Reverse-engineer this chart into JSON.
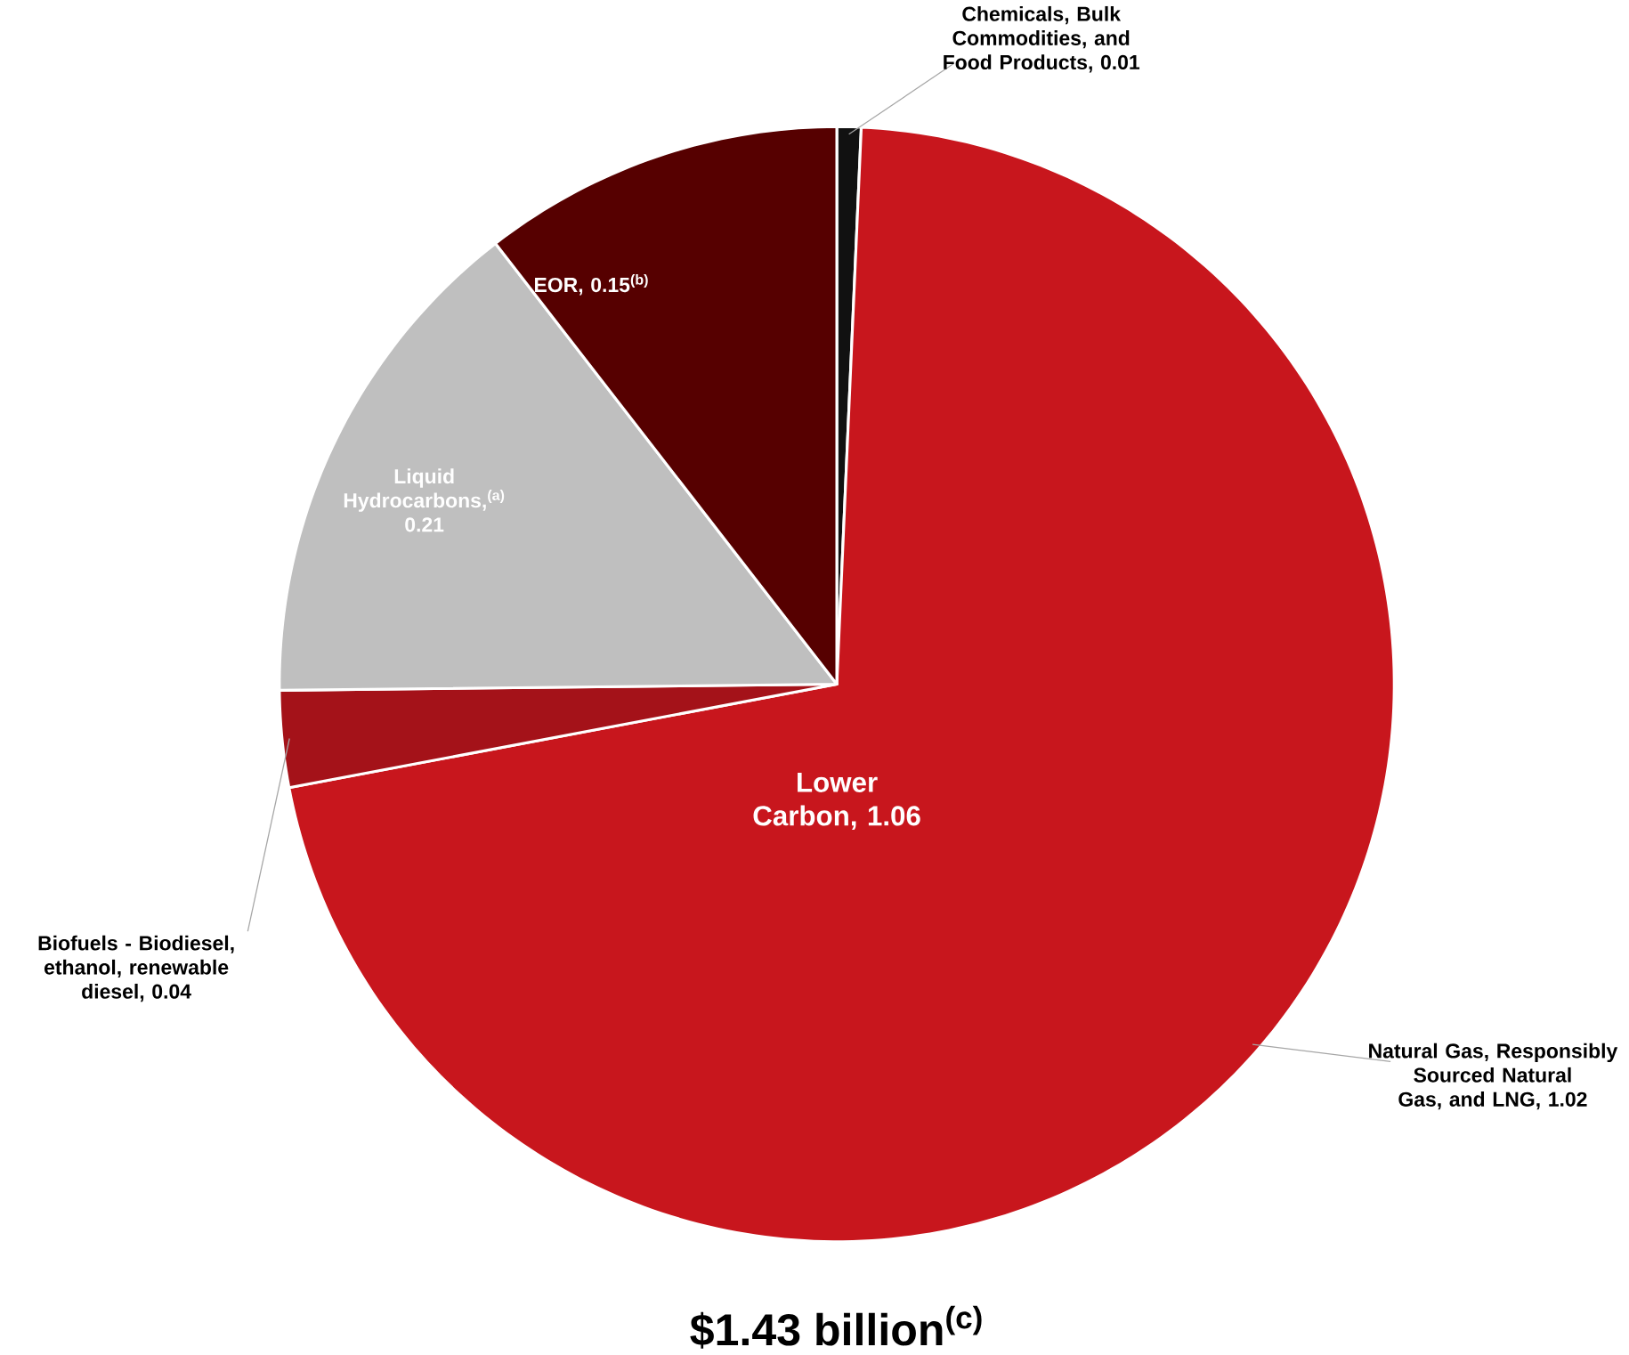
{
  "chart_data": {
    "type": "pie",
    "title": "$1.43 billion$^{(c)}$",
    "categories": [
      "Chemicals, Bulk Commodities, and Food Products, 0.01",
      "Natural Gas, Responsibly Sourced Natural Gas, and LNG,  1.02",
      "Biofuels - Biodiesel, ethanol, renewable diesel, 0.04",
      "Liquid Hydrocarbons,$^{(a)}$ 0.21",
      "EOR,  0.15$^{(b)}$"
    ],
    "values": [
      0.01,
      1.02,
      0.04,
      0.21,
      0.15
    ],
    "colors": [
      "#111111",
      "#c8161d",
      "#a41219",
      "#bfbfbf",
      "#560000"
    ],
    "annotations": [
      "Lower Carbon, 1.06"
    ]
  }
}
